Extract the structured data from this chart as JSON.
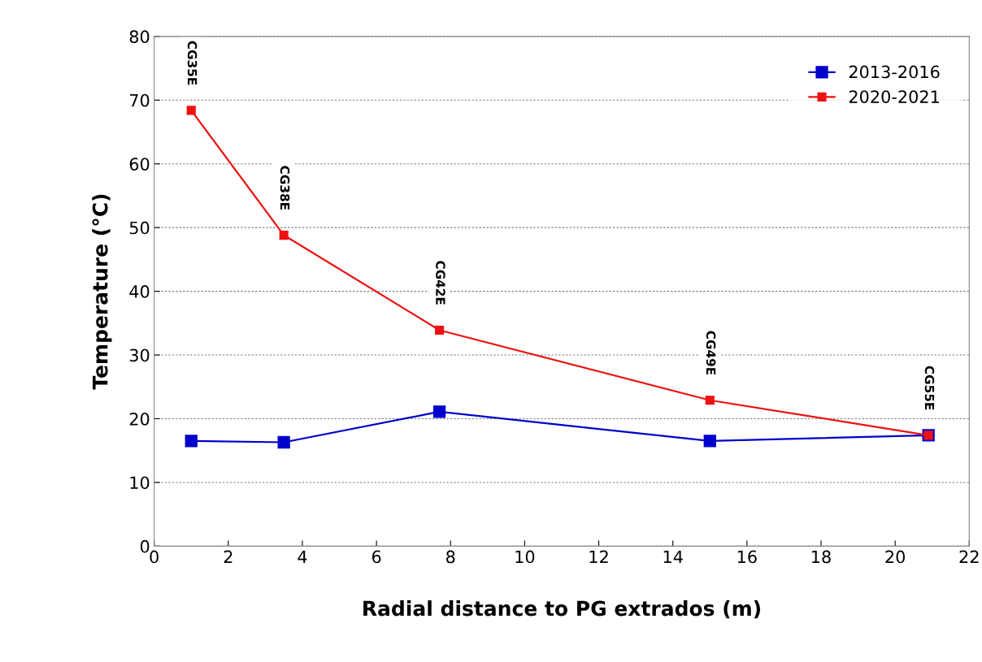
{
  "chart_data": {
    "type": "line",
    "xlabel": "Radial distance to PG extrados (m)",
    "ylabel": "Temperature (°C)",
    "x": [
      1.0,
      3.5,
      7.7,
      15.0,
      20.9
    ],
    "series": [
      {
        "name": "2013-2016",
        "color": "#0000cc",
        "values": [
          16.5,
          16.3,
          21.1,
          16.5,
          17.4
        ]
      },
      {
        "name": "2020-2021",
        "color": "#ee1111",
        "values": [
          68.4,
          48.8,
          33.9,
          22.9,
          17.4
        ]
      }
    ],
    "xlim": [
      0,
      22
    ],
    "xticks": [
      0,
      2,
      4,
      6,
      8,
      10,
      12,
      14,
      16,
      18,
      20,
      22
    ],
    "ylim": [
      0,
      80
    ],
    "yticks": [
      0,
      10,
      20,
      30,
      40,
      50,
      60,
      70,
      80
    ],
    "grid": "y",
    "legend": "top right",
    "marker": "square",
    "line_style": "solid",
    "annotations": [
      "CG35E",
      "CG38E",
      "CG42E",
      "CG49E",
      "CG55E"
    ]
  }
}
